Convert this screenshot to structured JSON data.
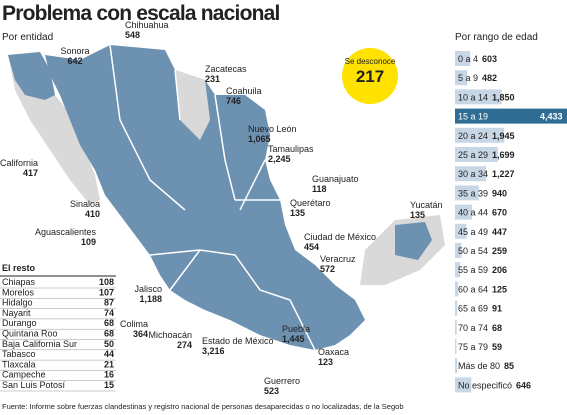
{
  "title": "Problema con escala nacional",
  "map_title": "Por entidad",
  "unknown": {
    "label": "Se desconoce",
    "value": 217
  },
  "states": [
    {
      "name": "Sonora",
      "value": 642
    },
    {
      "name": "Chihuahua",
      "value": 548
    },
    {
      "name": "Zacatecas",
      "value": 231
    },
    {
      "name": "Coahuila",
      "value": 746
    },
    {
      "name": "Nuevo León",
      "value": 1065,
      "value_label": "1,065"
    },
    {
      "name": "Tamaulipas",
      "value": 2245,
      "value_label": "2,245"
    },
    {
      "name": "Baja California",
      "value": 417
    },
    {
      "name": "Guanajuato",
      "value": 118
    },
    {
      "name": "Sinaloa",
      "value": 410
    },
    {
      "name": "Querétaro",
      "value": 135
    },
    {
      "name": "Yucatán",
      "value": 135
    },
    {
      "name": "Aguascalientes",
      "value": 109
    },
    {
      "name": "Ciudad de México",
      "value": 454
    },
    {
      "name": "Veracruz",
      "value": 572
    },
    {
      "name": "Jalisco",
      "value": 1188,
      "value_label": "1,188"
    },
    {
      "name": "Colima",
      "value": 364
    },
    {
      "name": "Michoacán",
      "value": 274
    },
    {
      "name": "Estado de México",
      "value": 3216,
      "value_label": "3,216"
    },
    {
      "name": "Puebla",
      "value": 1445,
      "value_label": "1,445"
    },
    {
      "name": "Oaxaca",
      "value": 123
    },
    {
      "name": "Guerrero",
      "value": 523
    }
  ],
  "rest": {
    "title": "El resto",
    "rows": [
      [
        "Chiapas",
        108
      ],
      [
        "Morelos",
        107
      ],
      [
        "Hidalgo",
        87
      ],
      [
        "Nayarit",
        74
      ],
      [
        "Durango",
        68
      ],
      [
        "Quintana Roo",
        68
      ],
      [
        "Baja California Sur",
        50
      ],
      [
        "Tabasco",
        44
      ],
      [
        "Tlaxcala",
        21
      ],
      [
        "Campeche",
        16
      ],
      [
        "San Luis Potosí",
        15
      ]
    ]
  },
  "chart_data": {
    "type": "bar",
    "orientation": "horizontal",
    "title": "Por rango de edad",
    "categories": [
      "0 a 4",
      "5 a 9",
      "10 a 14",
      "15 a 19",
      "20 a 24",
      "25 a 29",
      "30 a 34",
      "35 a 39",
      "40 a 44",
      "45 a 49",
      "50 a 54",
      "55 a 59",
      "60 a 64",
      "65 a 69",
      "70 a 74",
      "75 a 79",
      "Más de 80",
      "No especificó"
    ],
    "values": [
      603,
      482,
      1850,
      4433,
      1945,
      1699,
      1227,
      940,
      670,
      447,
      259,
      206,
      125,
      91,
      68,
      59,
      85,
      646
    ],
    "value_labels": [
      "603",
      "482",
      "1,850",
      "4,433",
      "1,945",
      "1,699",
      "1,227",
      "940",
      "670",
      "447",
      "259",
      "206",
      "125",
      "91",
      "68",
      "59",
      "85",
      "646"
    ],
    "color": "#c8d7e6",
    "highlight_color": "#2f6d94"
  },
  "source": "Fuente: Informe sobre fuerzas clandestinas y registro nacional de personas desaparecidas o no localizadas, de la Segob"
}
